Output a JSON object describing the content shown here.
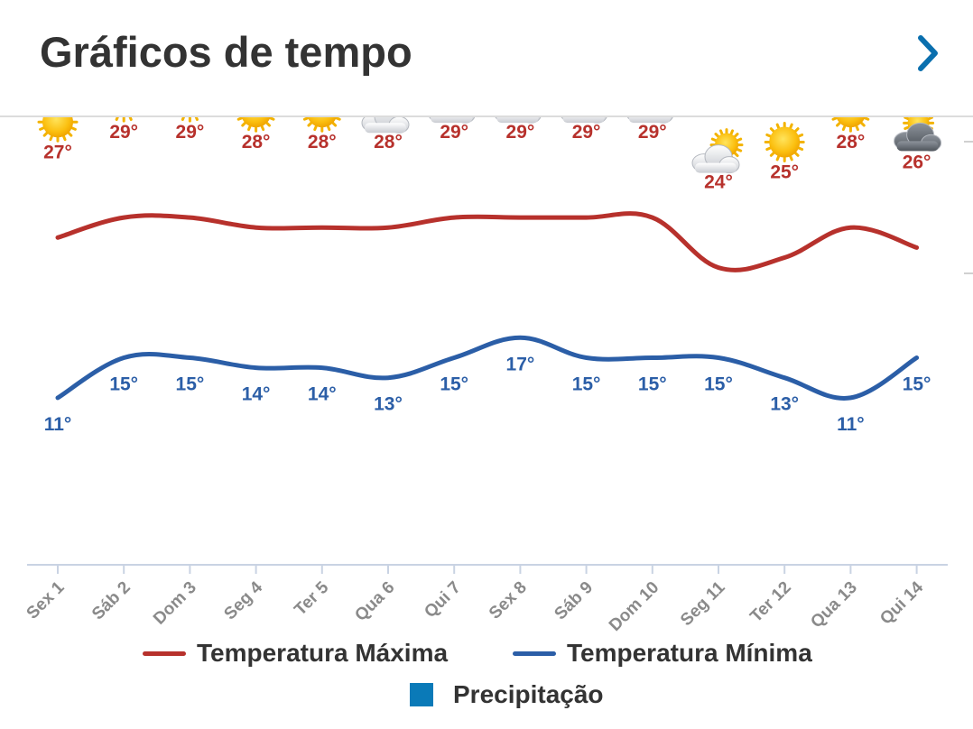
{
  "header": {
    "title": "Gráficos de tempo",
    "chevron_icon": "chevron-right-icon"
  },
  "colors": {
    "max": "#b7312c",
    "min": "#2b5ea7",
    "precip": "#0a7ab8",
    "axis": "#c9d3e3"
  },
  "chart_data": {
    "type": "line",
    "categories": [
      "Sex 1",
      "Sáb 2",
      "Dom 3",
      "Seg 4",
      "Ter 5",
      "Qua 6",
      "Qui 7",
      "Sex 8",
      "Sáb 9",
      "Dom 10",
      "Seg 11",
      "Ter 12",
      "Qua 13",
      "Qui 14"
    ],
    "series": [
      {
        "name": "Temperatura Máxima",
        "values": [
          27,
          29,
          29,
          28,
          28,
          28,
          29,
          29,
          29,
          29,
          24,
          25,
          28,
          26
        ],
        "labels": [
          "27°",
          "29°",
          "29°",
          "28°",
          "28°",
          "28°",
          "29°",
          "29°",
          "29°",
          "29°",
          "24°",
          "25°",
          "28°",
          "26°"
        ]
      },
      {
        "name": "Temperatura Mínima",
        "values": [
          11,
          15,
          15,
          14,
          14,
          13,
          15,
          17,
          15,
          15,
          15,
          13,
          11,
          15
        ],
        "labels": [
          "11°",
          "15°",
          "15°",
          "14°",
          "14°",
          "13°",
          "15°",
          "17°",
          "15°",
          "15°",
          "15°",
          "13°",
          "11°",
          "15°"
        ]
      }
    ],
    "weather_icons": [
      "sun-icon",
      "sun-icon",
      "sun-icon",
      "sun-icon",
      "sun-icon",
      "partly-cloudy-icon",
      "partly-cloudy-icon",
      "partly-cloudy-icon",
      "partly-cloudy-icon",
      "partly-cloudy-icon",
      "partly-cloudy-icon",
      "sun-icon",
      "sun-icon",
      "cloudy-icon"
    ],
    "legend": {
      "max": "Temperatura Máxima",
      "min": "Temperatura Mínima",
      "precip": "Precipitação"
    },
    "legend_placement": "bottom",
    "grid": false
  }
}
